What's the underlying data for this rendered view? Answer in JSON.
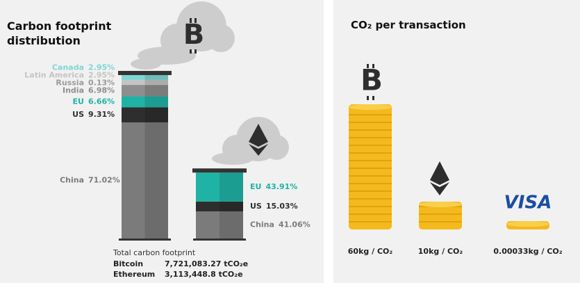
{
  "chart_data": [
    {
      "type": "stacked-chimney",
      "title": "Carbon footprint distribution",
      "total_title": "Total carbon footprint",
      "series": [
        {
          "name": "Bitcoin",
          "total": 7721083.27,
          "total_label": "7,721,083.27 tCO₂e",
          "categories": [
            "China",
            "US",
            "EU",
            "India",
            "Russia",
            "Latin America",
            "Canada"
          ],
          "values": [
            71.02,
            9.31,
            6.66,
            6.98,
            0.13,
            2.95,
            2.95
          ],
          "value_labels": [
            "71.02%",
            "9.31%",
            "6.66%",
            "6.98%",
            "0.13%",
            "2.95%",
            "2.95%"
          ],
          "colors": [
            "#7b7b7b",
            "#2e2e2e",
            "#1fb3a5",
            "#8e8e8e",
            "#9a9a9a",
            "#c4c4c4",
            "#7fd6d4"
          ]
        },
        {
          "name": "Ethereum",
          "total": 3113448.8,
          "total_label": "3,113,448.8  tCO₂e",
          "categories": [
            "China",
            "US",
            "EU"
          ],
          "values": [
            41.06,
            15.03,
            43.91
          ],
          "value_labels": [
            "41.06%",
            "15.03%",
            "43.91%"
          ],
          "colors": [
            "#7b7b7b",
            "#2e2e2e",
            "#1fb3a5"
          ]
        }
      ]
    },
    {
      "type": "coin-stack",
      "title": "CO₂ per transaction",
      "logo": "VISA",
      "values": [
        60,
        10,
        0.00033
      ],
      "value_labels": [
        "60kg / CO₂",
        "10kg / CO₂",
        "0.00033kg / CO₂"
      ],
      "color": "#f4b91c"
    }
  ]
}
